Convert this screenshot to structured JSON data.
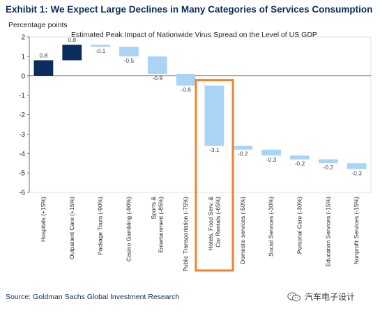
{
  "header": {
    "title": "Exhibit 1: We Expect Large Declines in Many Categories of Services Consumption",
    "y_unit_label": "Percentage points",
    "subtitle": "Estimated Peak Impact of Nationwide Virus Spread on the Level of US GDP"
  },
  "footer": {
    "source": "Source: Goldman Sachs Global Investment Research",
    "watermark_text": "汽车电子设计",
    "watermark_icon": "wechat-logo-icon"
  },
  "colors": {
    "positive_bar": "#0b2d5b",
    "negative_bar": "#a9d4f5",
    "highlight_box": "#f0822d",
    "axis": "#555555"
  },
  "chart_data": {
    "type": "bar",
    "subtype": "waterfall",
    "categories": [
      "Hospitals (+15%)",
      "Outpatient Care (+15%)",
      "Package Tours (-90%)",
      "Casino Gambling (-90%)",
      "Sports & Entertainment (-85%)",
      "Public Transportation (-75%)",
      "Hotels, Food Serv. & Car Rentals (-65%)",
      "Domestic services (-50%)",
      "Social Services (-30%)",
      "Personal Care (-30%)",
      "Education Services (-15%)",
      "Nonprofit Services (-15%)"
    ],
    "category_lines": [
      [
        "Hospitals (+15%)"
      ],
      [
        "Outpatient Care (+15%)"
      ],
      [
        "Package Tours (-90%)"
      ],
      [
        "Casino Gambling (-90%)"
      ],
      [
        "Sports &",
        "Entertainment (-85%)"
      ],
      [
        "Public Transportation (-75%)"
      ],
      [
        "Hotels, Food Serv. &",
        "Car Rentals (-65%)"
      ],
      [
        "Domestic services (-50%)"
      ],
      [
        "Social Services (-30%)"
      ],
      [
        "Personal Care (-30%)"
      ],
      [
        "Education Services (-15%)"
      ],
      [
        "Nonprofit Services (-15%)"
      ]
    ],
    "values": [
      0.8,
      0.8,
      -0.1,
      -0.5,
      -0.9,
      -0.6,
      -3.1,
      -0.2,
      -0.3,
      -0.2,
      -0.2,
      -0.3
    ],
    "value_labels": [
      "0.8",
      "0.8",
      "-0.1",
      "-0.5",
      "-0.9",
      "-0.6",
      "-3.1",
      "-0.2",
      "-0.3",
      "-0.2",
      "-0.2",
      "-0.3"
    ],
    "ylim": [
      -6,
      2
    ],
    "yticks": [
      2,
      1,
      0,
      -1,
      -2,
      -3,
      -4,
      -5,
      -6
    ],
    "ylabel": "Percentage points",
    "grid": false,
    "highlight_category": "Hotels, Food Serv. & Car Rentals (-65%)"
  }
}
